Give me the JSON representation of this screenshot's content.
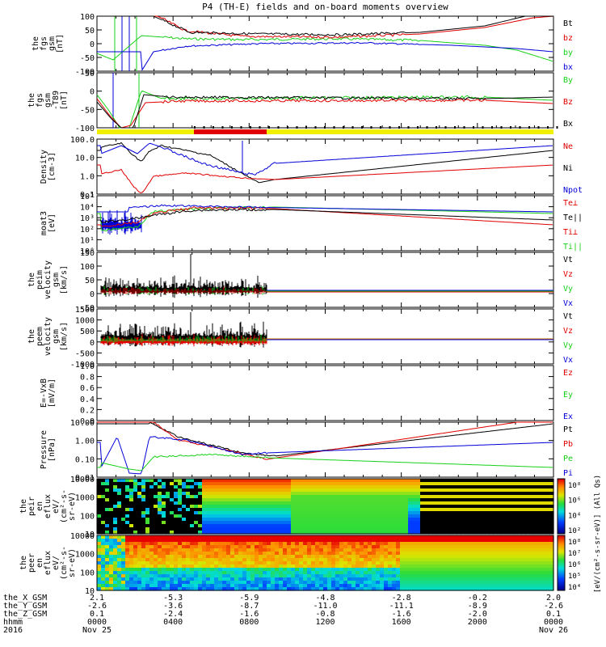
{
  "title": "P4 (TH-E) fields and on-board moments overview",
  "colors": {
    "black": "#000000",
    "red": "#e00000",
    "green": "#18d018",
    "blue": "#0000d8"
  },
  "chart_data": [
    {
      "type": "line",
      "ylabel": [
        "the",
        "fgs",
        "gsm",
        "[nT]"
      ],
      "yticks": [
        "100",
        "50",
        "0",
        "-50",
        "-100"
      ],
      "ylim": [
        -100,
        100
      ],
      "legend": [
        {
          "name": "Bt",
          "color": "black"
        },
        {
          "name": "bz",
          "color": "red"
        },
        {
          "name": "by",
          "color": "green"
        },
        {
          "name": "bx",
          "color": "blue"
        }
      ]
    },
    {
      "type": "line",
      "ylabel": [
        "the",
        "fgs",
        "gsm",
        "-T89",
        "[nT]"
      ],
      "yticks": [
        "50",
        "0",
        "-50",
        "-100"
      ],
      "ylim": [
        -120,
        60
      ],
      "legend": [
        {
          "name": "By",
          "color": "green"
        },
        {
          "name": "Bz",
          "color": "red"
        },
        {
          "name": "Bx",
          "color": "black"
        }
      ]
    },
    {
      "type": "line",
      "ylabel": [
        "Density",
        "[cm-3]"
      ],
      "yticks": [
        "100.0",
        "10.0",
        "1.0",
        "0.1"
      ],
      "log": true,
      "ylim": [
        0.1,
        300
      ],
      "legend": [
        {
          "name": "Ne",
          "color": "red"
        },
        {
          "name": "Ni",
          "color": "black"
        },
        {
          "name": "Npot",
          "color": "blue"
        }
      ]
    },
    {
      "type": "line",
      "ylabel": [
        "moat3",
        "[eV]"
      ],
      "yticks": [
        "10⁵",
        "10⁴",
        "10³",
        "10²",
        "10¹",
        "10⁰"
      ],
      "log": true,
      "ylim": [
        1,
        100000
      ],
      "legend": [
        {
          "name": "Te⊥",
          "color": "red"
        },
        {
          "name": "Te||",
          "color": "black"
        },
        {
          "name": "Ti⊥",
          "color": "red"
        },
        {
          "name": "Ti||",
          "color": "green"
        }
      ]
    },
    {
      "type": "line",
      "ylabel": [
        "the",
        "peim",
        "velocity",
        "gsm",
        "[km/s]"
      ],
      "yticks": [
        "150",
        "100",
        "50",
        "0",
        "-50"
      ],
      "ylim": [
        -60,
        150
      ],
      "legend": [
        {
          "name": "Vt",
          "color": "black"
        },
        {
          "name": "Vz",
          "color": "red"
        },
        {
          "name": "Vy",
          "color": "green"
        },
        {
          "name": "Vx",
          "color": "blue"
        }
      ]
    },
    {
      "type": "line",
      "ylabel": [
        "the",
        "peem",
        "velocity",
        "gsm",
        "[km/s]"
      ],
      "yticks": [
        "1500",
        "1000",
        "500",
        "0",
        "-500",
        "-1000"
      ],
      "ylim": [
        -1200,
        1500
      ],
      "legend": [
        {
          "name": "Vt",
          "color": "black"
        },
        {
          "name": "Vz",
          "color": "red"
        },
        {
          "name": "Vy",
          "color": "green"
        },
        {
          "name": "Vx",
          "color": "blue"
        }
      ]
    },
    {
      "type": "line",
      "ylabel": [
        "E=-VxB",
        "[mV/m]"
      ],
      "yticks": [
        "1.0",
        "0.8",
        "0.6",
        "0.4",
        "0.2",
        "0.0"
      ],
      "ylim": [
        0,
        1
      ],
      "legend": [
        {
          "name": "Ez",
          "color": "red"
        },
        {
          "name": "Ey",
          "color": "green"
        },
        {
          "name": "Ex",
          "color": "blue"
        }
      ]
    },
    {
      "type": "line",
      "ylabel": [
        "Pressure",
        "[nPa]"
      ],
      "yticks": [
        "10.00",
        "1.00",
        "0.10",
        "0.01"
      ],
      "log": true,
      "ylim": [
        0.005,
        50
      ],
      "legend": [
        {
          "name": "Pt",
          "color": "black"
        },
        {
          "name": "Pb",
          "color": "red"
        },
        {
          "name": "Pe",
          "color": "green"
        },
        {
          "name": "Pi",
          "color": "blue"
        }
      ]
    },
    {
      "type": "heatmap",
      "ylabel": [
        "the",
        "peir",
        "en",
        "eflux",
        "eV/",
        "(cm²-s-",
        "sr-eV)"
      ],
      "yticks": [
        "10000",
        "1000",
        "100",
        "10"
      ],
      "colorbar": {
        "ticks": [
          "10⁸",
          "10⁶",
          "10⁴",
          "10²"
        ],
        "label": "[eV/(cm²-s-sr-eV)] (All Qs)"
      }
    },
    {
      "type": "heatmap",
      "ylabel": [
        "the",
        "peer",
        "en",
        "eflux",
        "eV/",
        "(cm²-s-",
        "sr-eV)"
      ],
      "yticks": [
        "10000",
        "1000",
        "100",
        "10"
      ],
      "colorbar": {
        "ticks": [
          "10⁸",
          "10⁷",
          "10⁶",
          "10⁵",
          "10⁴"
        ],
        "label": ""
      }
    }
  ],
  "xaxis": {
    "row_labels": [
      "the_X_GSM",
      "the_Y_GSM",
      "the_Z_GSM",
      "hhmm",
      "2016"
    ],
    "columns": [
      {
        "x": "2.1",
        "y": "-2.6",
        "z": "0.1",
        "hhmm": "0000",
        "date": "Nov 25"
      },
      {
        "x": "-5.3",
        "y": "-3.6",
        "z": "-2.4",
        "hhmm": "0400",
        "date": ""
      },
      {
        "x": "-5.9",
        "y": "-8.7",
        "z": "-1.6",
        "hhmm": "0800",
        "date": ""
      },
      {
        "x": "-4.8",
        "y": "-11.0",
        "z": "-0.8",
        "hhmm": "1200",
        "date": ""
      },
      {
        "x": "-2.8",
        "y": "-11.1",
        "z": "-1.6",
        "hhmm": "1600",
        "date": ""
      },
      {
        "x": "-0.2",
        "y": "-8.9",
        "z": "-2.0",
        "hhmm": "2000",
        "date": ""
      },
      {
        "x": "2.0",
        "y": "-2.6",
        "z": "0.1",
        "hhmm": "0000",
        "date": "Nov 26"
      }
    ]
  }
}
